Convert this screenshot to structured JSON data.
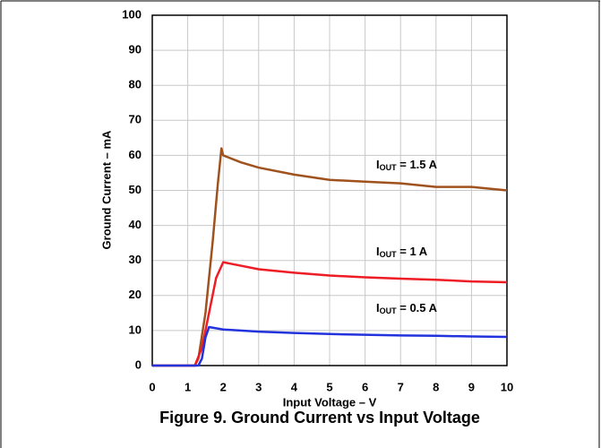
{
  "chart_data": {
    "type": "line",
    "title": "Figure 9. Ground Current vs Input Voltage",
    "x_label": "Input Voltage – V",
    "y_label": "Ground Current – mA",
    "xlim": [
      0,
      10
    ],
    "xticks": [
      0,
      1,
      2,
      3,
      4,
      5,
      6,
      7,
      8,
      9,
      10
    ],
    "ylim": [
      0,
      100
    ],
    "yticks": [
      0,
      10,
      20,
      30,
      40,
      50,
      60,
      70,
      80,
      90,
      100
    ],
    "grid": true,
    "series": [
      {
        "color": "#a0521e",
        "label": {
          "main": "I",
          "sub": "OUT",
          "rest": " = 1.5 A"
        },
        "x": [
          0,
          1.2,
          1.3,
          1.5,
          1.7,
          1.85,
          1.95,
          2.0,
          2.5,
          3,
          4,
          5,
          6,
          7,
          8,
          9,
          10
        ],
        "values": [
          0,
          0,
          2,
          15,
          35,
          52,
          62,
          60,
          58,
          56.5,
          54.5,
          53,
          52.5,
          52,
          51,
          51,
          50
        ]
      },
      {
        "color": "#ee1c24",
        "label": {
          "main": "I",
          "sub": "OUT",
          "rest": " = 1 A"
        },
        "x": [
          0,
          1.2,
          1.4,
          1.6,
          1.8,
          2.0,
          2.5,
          3,
          4,
          5,
          6,
          7,
          8,
          9,
          10
        ],
        "values": [
          0,
          0,
          5,
          15,
          25,
          29.5,
          28.5,
          27.5,
          26.5,
          25.7,
          25.2,
          24.8,
          24.5,
          24,
          23.8
        ]
      },
      {
        "color": "#2233dd",
        "label": {
          "main": "I",
          "sub": "OUT",
          "rest": " = 0.5 A"
        },
        "x": [
          0,
          1.3,
          1.4,
          1.5,
          1.6,
          2,
          3,
          4,
          5,
          6,
          7,
          8,
          9,
          10
        ],
        "values": [
          0,
          0,
          2,
          8,
          11,
          10.3,
          9.7,
          9.3,
          9,
          8.8,
          8.6,
          8.5,
          8.3,
          8.2
        ]
      }
    ]
  }
}
